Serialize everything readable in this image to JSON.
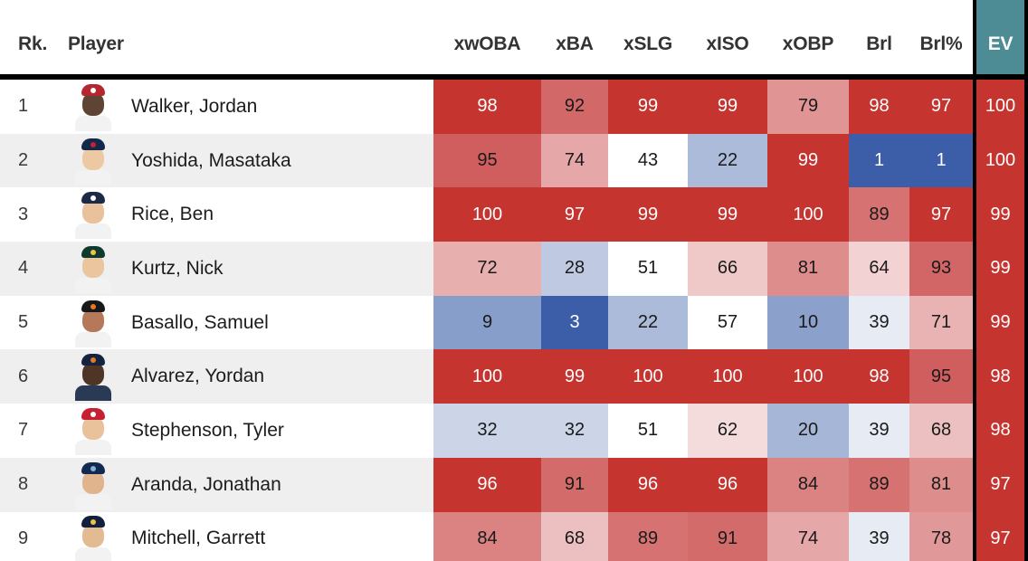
{
  "table": {
    "header": {
      "rk": "Rk.",
      "player": "Player",
      "xwoba": "xwOBA",
      "xba": "xBA",
      "xslg": "xSLG",
      "xiso": "xISO",
      "xobp": "xOBP",
      "brl": "Brl",
      "brlpct": "Brl%",
      "ev": "EV"
    },
    "stat_columns": [
      "xwOBA",
      "xBA",
      "xSLG",
      "xISO",
      "xOBP",
      "Brl",
      "Brl%"
    ],
    "highlight_column": "EV",
    "rows": [
      {
        "rank": "1",
        "player": "Walker, Jordan",
        "stats": [
          98,
          92,
          99,
          99,
          79,
          98,
          97
        ],
        "ev": 100,
        "avatar": {
          "cap": "#b5262e",
          "logo": "#ffffff",
          "skin": "#5f4333",
          "jersey": "#f2f2f2"
        }
      },
      {
        "rank": "2",
        "player": "Yoshida, Masataka",
        "stats": [
          95,
          74,
          43,
          22,
          99,
          1,
          1
        ],
        "ev": 100,
        "avatar": {
          "cap": "#12294b",
          "logo": "#c62033",
          "skin": "#ecc9a3",
          "jersey": "#f2f2f2"
        }
      },
      {
        "rank": "3",
        "player": "Rice, Ben",
        "stats": [
          100,
          97,
          99,
          99,
          100,
          89,
          97
        ],
        "ev": 99,
        "avatar": {
          "cap": "#1b2a46",
          "logo": "#ffffff",
          "skin": "#e9c19b",
          "jersey": "#f2f2f2"
        }
      },
      {
        "rank": "4",
        "player": "Kurtz, Nick",
        "stats": [
          72,
          28,
          51,
          66,
          81,
          64,
          93
        ],
        "ev": 99,
        "avatar": {
          "cap": "#0f3a30",
          "logo": "#e8c547",
          "skin": "#eac59e",
          "jersey": "#f2f2f2"
        }
      },
      {
        "rank": "5",
        "player": "Basallo, Samuel",
        "stats": [
          9,
          3,
          22,
          57,
          10,
          39,
          71
        ],
        "ev": 99,
        "avatar": {
          "cap": "#16181c",
          "logo": "#e87722",
          "skin": "#b5795a",
          "jersey": "#f2f2f2"
        }
      },
      {
        "rank": "6",
        "player": "Alvarez, Yordan",
        "stats": [
          100,
          99,
          100,
          100,
          100,
          98,
          95
        ],
        "ev": 98,
        "avatar": {
          "cap": "#14233f",
          "logo": "#e87722",
          "skin": "#4f3526",
          "jersey": "#2a3a55"
        }
      },
      {
        "rank": "7",
        "player": "Stephenson, Tyler",
        "stats": [
          32,
          32,
          51,
          62,
          20,
          39,
          68
        ],
        "ev": 98,
        "avatar": {
          "cap": "#c62033",
          "logo": "#ffffff",
          "skin": "#e9c19b",
          "jersey": "#f2f2f2"
        }
      },
      {
        "rank": "8",
        "player": "Aranda, Jonathan",
        "stats": [
          96,
          91,
          96,
          96,
          84,
          89,
          81
        ],
        "ev": 97,
        "avatar": {
          "cap": "#122a4f",
          "logo": "#7fb3d8",
          "skin": "#e0b58d",
          "jersey": "#f2f2f2"
        }
      },
      {
        "rank": "9",
        "player": "Mitchell, Garrett",
        "stats": [
          84,
          68,
          89,
          91,
          74,
          39,
          78
        ],
        "ev": 97,
        "avatar": {
          "cap": "#131f3d",
          "logo": "#e8c547",
          "skin": "#e3bb92",
          "jersey": "#f2f2f2"
        }
      }
    ]
  },
  "colors": {
    "extreme_high": "#c63430",
    "soft_high": "#cf5b5b",
    "extreme_low": "#3c5ea8",
    "soft_low": "#7b93c4",
    "neutral": "#ffffff",
    "extreme_text": "#ffffff",
    "normal_text": "#1a1a1a",
    "ev_header_bg": "#4d8c95",
    "row_alt_bg": "#efefef",
    "rule": "#000000"
  }
}
